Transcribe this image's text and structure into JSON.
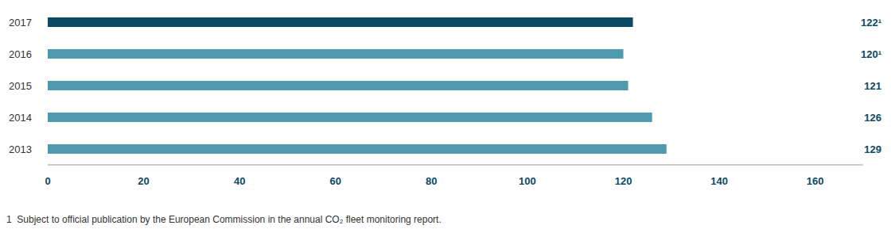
{
  "chart_data": {
    "type": "bar",
    "orientation": "horizontal",
    "categories": [
      "2017",
      "2016",
      "2015",
      "2014",
      "2013"
    ],
    "values": [
      122,
      120,
      121,
      126,
      129
    ],
    "value_labels": [
      "122¹",
      "120¹",
      "121",
      "126",
      "129"
    ],
    "data_labels": true,
    "colors": [
      "#0b4a63",
      "#4f9aac",
      "#4f9aac",
      "#4f9aac",
      "#4f9aac"
    ],
    "xlim": [
      0,
      170
    ],
    "xticks": [
      0,
      20,
      40,
      60,
      80,
      100,
      120,
      140,
      160
    ],
    "grid": false,
    "footnote": "1  Subject to official publication by the European Commission in the annual CO₂ fleet monitoring report."
  }
}
